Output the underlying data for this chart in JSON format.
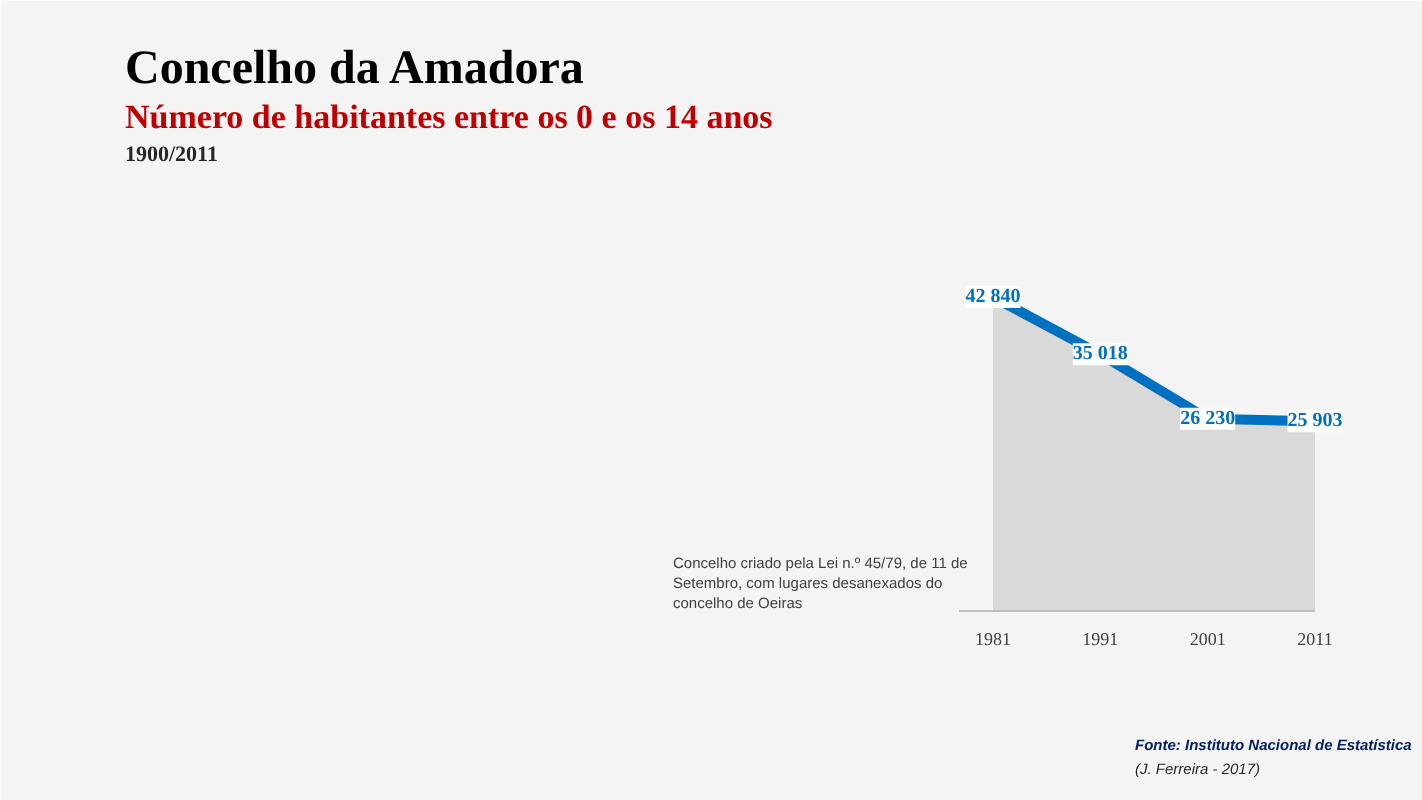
{
  "chart_data": {
    "type": "area",
    "title": "Concelho da Amadora",
    "subtitle": "Número de habitantes entre os 0 e os 14 anos",
    "categories": [
      "1981",
      "1991",
      "2001",
      "2011"
    ],
    "series": [
      {
        "color": "#0070c0",
        "values": [
          42840,
          35018,
          26230,
          25903
        ],
        "value_labels": [
          "42 840",
          "35 018",
          "26 230",
          "25 903"
        ]
      }
    ],
    "annotations": [
      "1900/2011",
      "Concelho criado pela Lei n.º 45/79, de 11 de Setembro, com lugares desanexados do concelho de Oeiras",
      "Fonte: Instituto Nacional de Estatística",
      "(J. Ferreira - 2017)"
    ]
  }
}
